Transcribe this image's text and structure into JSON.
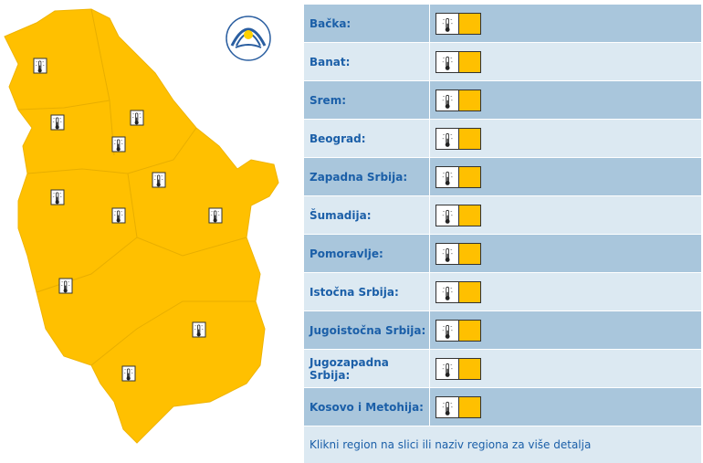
{
  "regions": [
    "Bačka:",
    "Banat:",
    "Srem:",
    "Beograd:",
    "Zapadna Srbija:",
    "Šumadija:",
    "Pomoravlje:",
    "Istočna Srbija:",
    "Jugoistočna Srbija:",
    "Jugozapadna Srbija:",
    "Kosovo i Metohija:"
  ],
  "footer": "Klikni region na slici ili naziv regiona za više detalja"
}
